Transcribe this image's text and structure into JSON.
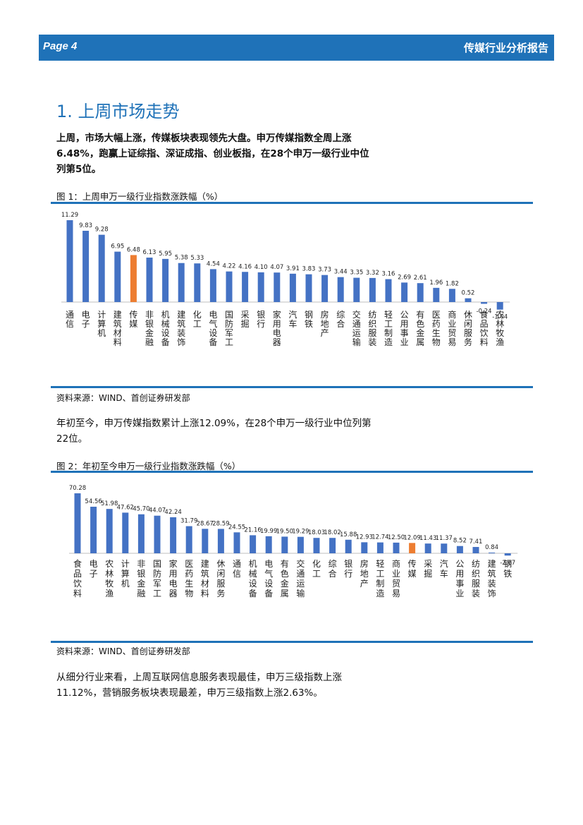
{
  "header": {
    "page_label": "Page 4",
    "report_title": "传媒行业分析报告"
  },
  "section": {
    "title": "1. 上周市场走势"
  },
  "intro": {
    "text": "上周，市场大幅上涨，传媒板块表现领先大盘。申万传媒指数全周上涨6.48%，跑赢上证综指、深证成指、创业板指，在28个申万一级行业中位列第5位。"
  },
  "figure1": {
    "caption": "图 1：上周申万一级行业指数涨跌幅（%）",
    "source": "资料来源：WIND、首创证券研发部"
  },
  "paragraph2": {
    "text": "年初至今，申万传媒指数累计上涨12.09%，在28个申万一级行业中位列第22位。"
  },
  "figure2": {
    "caption": "图 2：年初至今申万一级行业指数涨跌幅（%）",
    "source": "资料来源：WIND、首创证券研发部"
  },
  "paragraph3": {
    "text": "从细分行业来看，上周互联网信息服务表现最佳，申万三级指数上涨11.12%，营销服务板块表现最差，申万三级指数上涨2.63%。"
  },
  "colors": {
    "bar": "#4472c4",
    "highlight": "#ed7d31",
    "accent": "#1f72b8"
  },
  "chart_data": [
    {
      "type": "bar",
      "title": "",
      "highlight": "传媒",
      "categories": [
        "通信",
        "电子",
        "计算机",
        "建筑材料",
        "传媒",
        "非银金融",
        "机械设备",
        "建筑装饰",
        "化工",
        "电气设备",
        "国防军工",
        "采掘",
        "银行",
        "家用电器",
        "汽车",
        "钢铁",
        "房地产",
        "综合",
        "交通运输",
        "纺织服装",
        "轻工制造",
        "公用事业",
        "有色金属",
        "医药生物",
        "商业贸易",
        "休闲服务",
        "食品饮料",
        "农林牧渔"
      ],
      "values": [
        11.29,
        9.83,
        9.28,
        6.95,
        6.48,
        6.13,
        5.95,
        5.38,
        5.33,
        4.54,
        4.22,
        4.16,
        4.1,
        4.07,
        3.91,
        3.83,
        3.73,
        3.44,
        3.35,
        3.32,
        3.16,
        2.69,
        2.61,
        1.96,
        1.82,
        0.52,
        -0.24,
        -1.04
      ],
      "labels": [
        "11.29",
        "9.83",
        "9.28",
        "6.95",
        "6.48",
        "6.13",
        "5.95",
        "5.38",
        "5.33",
        "4.54",
        "4.22",
        "4.16",
        "4.10",
        "4.07",
        "3.91",
        "3.83",
        "3.73",
        "3.44",
        "3.35",
        "3.32",
        "3.16",
        "2.69",
        "2.61",
        "1.96",
        "1.82",
        "0.52",
        "-0.24",
        "-1.04"
      ],
      "ylim": [
        -2,
        12
      ]
    },
    {
      "type": "bar",
      "title": "",
      "highlight": "传媒",
      "categories": [
        "食品饮料",
        "电子",
        "农林牧渔",
        "计算机",
        "非银金融",
        "国防军工",
        "家用电器",
        "医药生物",
        "建筑材料",
        "休闲服务",
        "通信",
        "机械设备",
        "电气设备",
        "有色金属",
        "交通运输",
        "化工",
        "综合",
        "银行",
        "房地产",
        "轻工制造",
        "商业贸易",
        "传媒",
        "采掘",
        "汽车",
        "公用事业",
        "纺织服装",
        "建筑装饰",
        "钢铁"
      ],
      "values": [
        70.28,
        54.56,
        51.98,
        47.62,
        45.7,
        44.07,
        42.24,
        31.79,
        28.67,
        28.59,
        24.55,
        21.16,
        19.99,
        19.5,
        19.29,
        18.03,
        18.02,
        15.88,
        12.93,
        12.74,
        12.5,
        12.09,
        11.43,
        11.37,
        8.52,
        7.41,
        0.84,
        -2.67
      ],
      "labels": [
        "70.28",
        "54.56",
        "51.98",
        "47.62",
        "45.70",
        "44.07",
        "42.24",
        "31.79",
        "28.67",
        "28.59",
        "24.55",
        "21.16",
        "19.99",
        "19.50",
        "19.29",
        "18.03",
        "18.02",
        "15.88",
        "12.93",
        "12.74",
        "12.50",
        "12.09",
        "11.43",
        "11.37",
        "8.52",
        "7.41",
        "0.84",
        "-2.67"
      ],
      "ylim": [
        -6,
        72
      ]
    }
  ]
}
